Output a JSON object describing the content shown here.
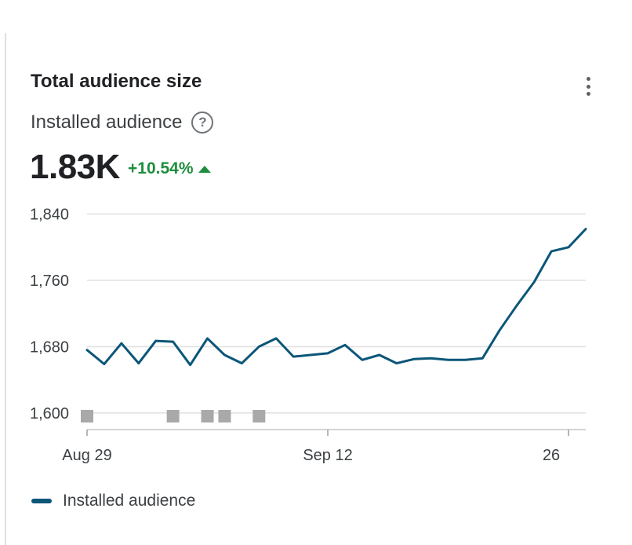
{
  "card": {
    "title": "Total audience size",
    "metric_label": "Installed audience",
    "metric_value": "1.83K",
    "metric_change": "+10.54%",
    "help_icon": "help-circle-icon",
    "menu_icon": "more-vert-icon"
  },
  "colors": {
    "line": "#0b5679",
    "positive": "#1e8e3e",
    "grid": "#e0e0e0",
    "event_marker": "#a9a9a9"
  },
  "chart_data": {
    "type": "line",
    "title": "Total audience size",
    "xlabel": "",
    "ylabel": "",
    "ylim": [
      1580,
      1850
    ],
    "y_ticks": [
      1600,
      1680,
      1760,
      1840
    ],
    "y_tick_labels": [
      "1,600",
      "1,680",
      "1,760",
      "1,840"
    ],
    "x_ticks": [
      0,
      14,
      28
    ],
    "x_tick_labels": [
      "Aug 29",
      "Sep 12",
      "26"
    ],
    "grid": true,
    "legend": "bottom-left",
    "series": [
      {
        "name": "Installed audience",
        "x": [
          0,
          1,
          2,
          3,
          4,
          5,
          6,
          7,
          8,
          9,
          10,
          11,
          12,
          13,
          14,
          15,
          16,
          17,
          18,
          19,
          20,
          21,
          22,
          23,
          24,
          25,
          26,
          27,
          28,
          29
        ],
        "values": [
          1676,
          1659,
          1684,
          1660,
          1687,
          1686,
          1658,
          1690,
          1670,
          1660,
          1680,
          1690,
          1668,
          1670,
          1672,
          1682,
          1664,
          1670,
          1660,
          1665,
          1666,
          1664,
          1664,
          1666,
          1700,
          1730,
          1758,
          1795,
          1800,
          1822
        ]
      }
    ],
    "event_markers_x": [
      0,
      5,
      7,
      8,
      10
    ]
  }
}
